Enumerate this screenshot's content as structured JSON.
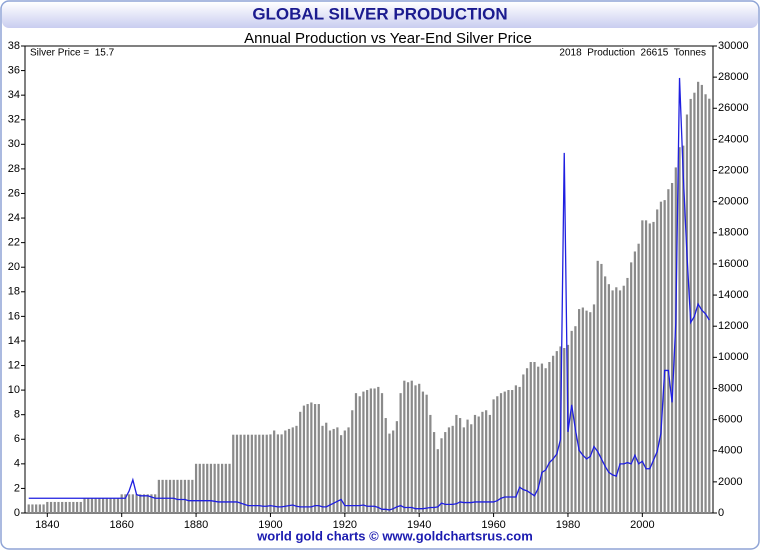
{
  "chart_data": {
    "type": "bar_line",
    "title": "GLOBAL SILVER PRODUCTION",
    "subtitle": "Annual Production vs Year-End Silver Price",
    "annotation_left": "Silver Price =  15.7",
    "annotation_right": "2018  Production  26615  Tonnes",
    "footer": "world gold charts © www.goldchartsrus.com",
    "x": [
      1835,
      1836,
      1837,
      1838,
      1839,
      1840,
      1841,
      1842,
      1843,
      1844,
      1845,
      1846,
      1847,
      1848,
      1849,
      1850,
      1851,
      1852,
      1853,
      1854,
      1855,
      1856,
      1857,
      1858,
      1859,
      1860,
      1861,
      1862,
      1863,
      1864,
      1865,
      1866,
      1867,
      1868,
      1869,
      1870,
      1871,
      1872,
      1873,
      1874,
      1875,
      1876,
      1877,
      1878,
      1879,
      1880,
      1881,
      1882,
      1883,
      1884,
      1885,
      1886,
      1887,
      1888,
      1889,
      1890,
      1891,
      1892,
      1893,
      1894,
      1895,
      1896,
      1897,
      1898,
      1899,
      1900,
      1901,
      1902,
      1903,
      1904,
      1905,
      1906,
      1907,
      1908,
      1909,
      1910,
      1911,
      1912,
      1913,
      1914,
      1915,
      1916,
      1917,
      1918,
      1919,
      1920,
      1921,
      1922,
      1923,
      1924,
      1925,
      1926,
      1927,
      1928,
      1929,
      1930,
      1931,
      1932,
      1933,
      1934,
      1935,
      1936,
      1937,
      1938,
      1939,
      1940,
      1941,
      1942,
      1943,
      1944,
      1945,
      1946,
      1947,
      1948,
      1949,
      1950,
      1951,
      1952,
      1953,
      1954,
      1955,
      1956,
      1957,
      1958,
      1959,
      1960,
      1961,
      1962,
      1963,
      1964,
      1965,
      1966,
      1967,
      1968,
      1969,
      1970,
      1971,
      1972,
      1973,
      1974,
      1975,
      1976,
      1977,
      1978,
      1979,
      1980,
      1981,
      1982,
      1983,
      1984,
      1985,
      1986,
      1987,
      1988,
      1989,
      1990,
      1991,
      1992,
      1993,
      1994,
      1995,
      1996,
      1997,
      1998,
      1999,
      2000,
      2001,
      2002,
      2003,
      2004,
      2005,
      2006,
      2007,
      2008,
      2009,
      2010,
      2011,
      2012,
      2013,
      2014,
      2015,
      2016,
      2017,
      2018
    ],
    "series": [
      {
        "type": "bar",
        "axis": "y2",
        "color": "#8a8a8a",
        "values": [
          550,
          550,
          550,
          550,
          550,
          710,
          710,
          710,
          710,
          710,
          710,
          710,
          710,
          710,
          710,
          950,
          950,
          950,
          950,
          950,
          950,
          950,
          950,
          950,
          950,
          1200,
          1200,
          1200,
          1200,
          1200,
          1200,
          1200,
          1200,
          1200,
          1200,
          2130,
          2130,
          2130,
          2130,
          2130,
          2130,
          2130,
          2130,
          2130,
          2130,
          3160,
          3160,
          3160,
          3160,
          3160,
          3160,
          3160,
          3160,
          3160,
          3160,
          5030,
          5030,
          5030,
          5030,
          5030,
          5030,
          5030,
          5030,
          5030,
          5030,
          5050,
          5300,
          5050,
          5050,
          5300,
          5400,
          5500,
          5600,
          6500,
          6900,
          7000,
          7100,
          7000,
          7000,
          5600,
          5800,
          5300,
          5400,
          5500,
          5000,
          5300,
          5500,
          6600,
          7700,
          7500,
          7800,
          7900,
          8000,
          8000,
          8100,
          7700,
          6100,
          5100,
          5300,
          5900,
          7700,
          8500,
          8400,
          8500,
          8200,
          8300,
          7800,
          7600,
          6300,
          5200,
          4100,
          4800,
          5200,
          5500,
          5600,
          6300,
          6100,
          5500,
          6000,
          5700,
          6300,
          6200,
          6500,
          6600,
          6300,
          7300,
          7500,
          7700,
          7800,
          7900,
          7900,
          8200,
          8100,
          8900,
          9300,
          9700,
          9700,
          9400,
          9600,
          9300,
          9700,
          10100,
          10400,
          10700,
          10600,
          10800,
          11700,
          12000,
          13100,
          13200,
          13000,
          12900,
          13400,
          16200,
          16000,
          15200,
          14700,
          14300,
          14500,
          14300,
          14600,
          15100,
          16100,
          16800,
          17300,
          18800,
          18800,
          18600,
          18700,
          19500,
          20000,
          20100,
          20800,
          21200,
          22200,
          23500,
          23600,
          25600,
          26600,
          27000,
          27700,
          27500,
          26900,
          26615
        ]
      },
      {
        "type": "line",
        "axis": "y",
        "color": "#1f1fe0",
        "values": [
          1.2,
          1.2,
          1.2,
          1.2,
          1.2,
          1.2,
          1.2,
          1.2,
          1.2,
          1.2,
          1.2,
          1.2,
          1.2,
          1.2,
          1.2,
          1.2,
          1.2,
          1.2,
          1.2,
          1.2,
          1.2,
          1.2,
          1.2,
          1.2,
          1.2,
          1.2,
          1.2,
          1.8,
          2.7,
          1.5,
          1.4,
          1.4,
          1.4,
          1.3,
          1.2,
          1.2,
          1.2,
          1.2,
          1.2,
          1.2,
          1.1,
          1.1,
          1.1,
          1.0,
          1.0,
          1.0,
          1.0,
          1.0,
          1.0,
          1.0,
          0.95,
          0.9,
          0.9,
          0.9,
          0.9,
          0.9,
          0.9,
          0.8,
          0.7,
          0.6,
          0.6,
          0.6,
          0.6,
          0.55,
          0.55,
          0.6,
          0.55,
          0.5,
          0.5,
          0.55,
          0.6,
          0.65,
          0.55,
          0.5,
          0.5,
          0.5,
          0.5,
          0.6,
          0.6,
          0.5,
          0.5,
          0.65,
          0.8,
          0.95,
          1.1,
          0.6,
          0.6,
          0.6,
          0.6,
          0.6,
          0.65,
          0.55,
          0.55,
          0.55,
          0.45,
          0.3,
          0.3,
          0.25,
          0.35,
          0.5,
          0.6,
          0.45,
          0.45,
          0.45,
          0.35,
          0.35,
          0.35,
          0.4,
          0.45,
          0.45,
          0.5,
          0.8,
          0.7,
          0.7,
          0.7,
          0.75,
          0.9,
          0.85,
          0.85,
          0.85,
          0.9,
          0.9,
          0.9,
          0.9,
          0.9,
          0.9,
          1.0,
          1.2,
          1.3,
          1.3,
          1.3,
          1.3,
          2.1,
          1.9,
          1.8,
          1.6,
          1.4,
          2.0,
          3.3,
          3.5,
          4.1,
          4.4,
          4.8,
          6.0,
          29.3,
          6.6,
          8.8,
          6.8,
          5.1,
          4.7,
          4.4,
          4.6,
          5.4,
          5.0,
          4.4,
          3.8,
          3.3,
          3.1,
          3.0,
          4.0,
          4.0,
          4.1,
          4.0,
          4.7,
          4.0,
          4.2,
          3.6,
          3.6,
          4.3,
          5.0,
          6.5,
          11.6,
          11.6,
          9.0,
          15.5,
          35.4,
          27.5,
          21.0,
          15.5,
          16.0,
          17.0,
          16.5,
          16.2,
          15.7
        ]
      }
    ],
    "xlim": [
      1834,
      2019
    ],
    "xticks": [
      1840,
      1860,
      1880,
      1900,
      1920,
      1940,
      1960,
      1980,
      2000
    ],
    "ylim": [
      0,
      38
    ],
    "yticks": [
      0,
      2,
      4,
      6,
      8,
      10,
      12,
      14,
      16,
      18,
      20,
      22,
      24,
      26,
      28,
      30,
      32,
      34,
      36,
      38
    ],
    "y2lim": [
      0,
      30000
    ],
    "y2ticks": [
      0,
      2000,
      4000,
      6000,
      8000,
      10000,
      12000,
      14000,
      16000,
      18000,
      20000,
      22000,
      24000,
      26000,
      28000,
      30000
    ],
    "grid": false
  }
}
